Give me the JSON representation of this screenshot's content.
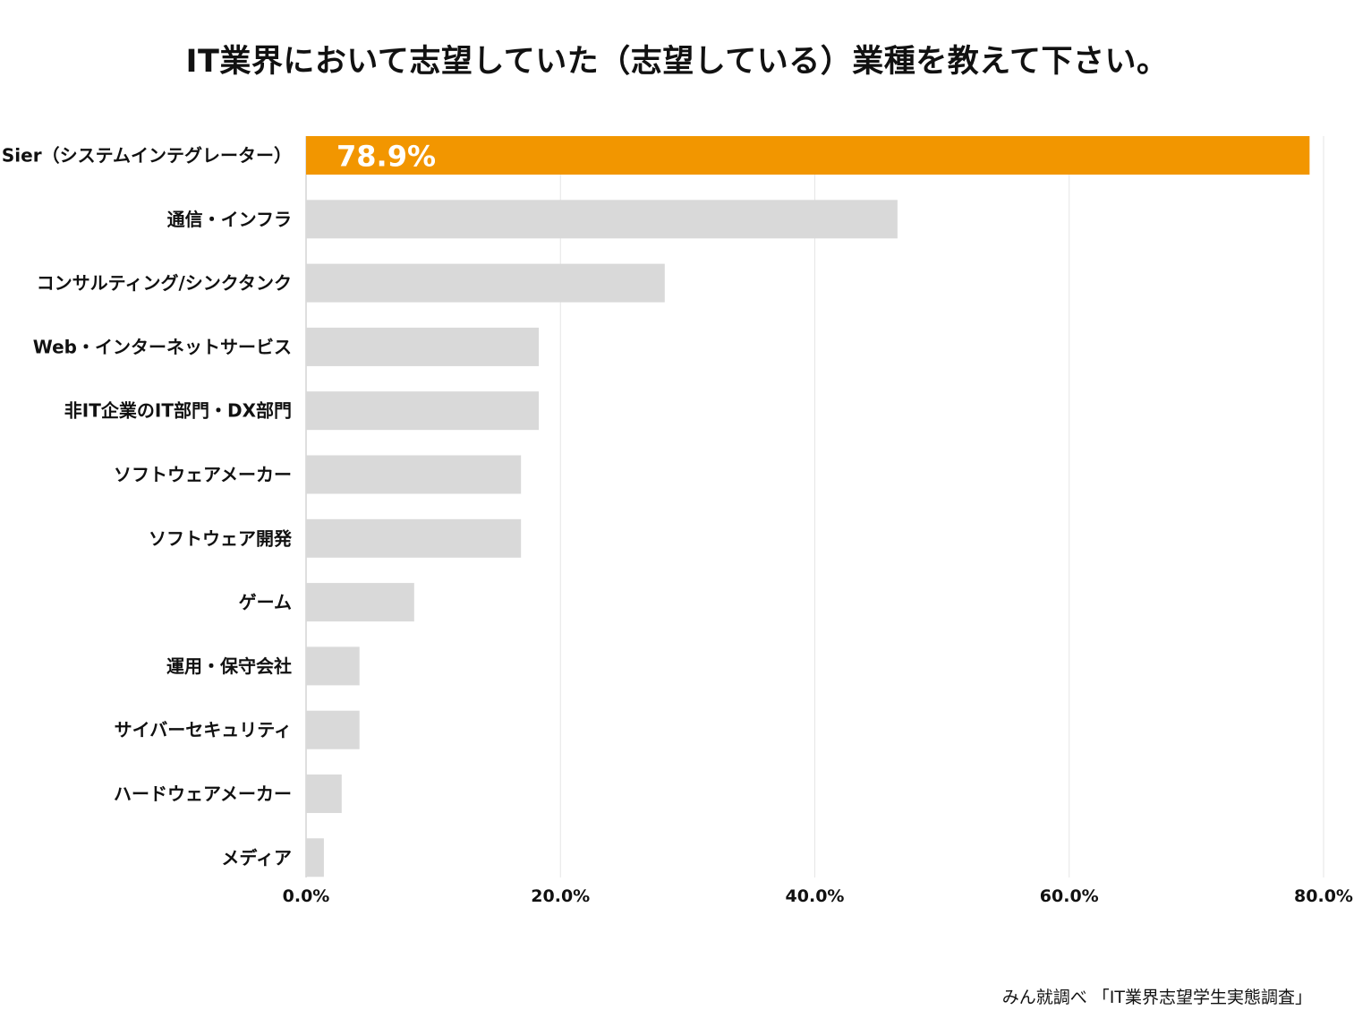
{
  "chart_data": {
    "type": "bar",
    "orientation": "horizontal",
    "title": "IT業界において志望していた（志望している）業種を教えて下さい。",
    "categories": [
      "Sier（システムインテグレーター）",
      "通信・インフラ",
      "コンサルティング/シンクタンク",
      "Web・インターネットサービス",
      "非IT企業のIT部門・DX部門",
      "ソフトウェアメーカー",
      "ソフトウェア開発",
      "ゲーム",
      "運用・保守会社",
      "サイバーセキュリティ",
      "ハードウェアメーカー",
      "メディア"
    ],
    "values": [
      78.9,
      46.5,
      28.2,
      18.3,
      18.3,
      16.9,
      16.9,
      8.5,
      4.2,
      4.2,
      2.8,
      1.4
    ],
    "data_labels": [
      "78.9%",
      "",
      "",
      "",
      "",
      "",
      "",
      "",
      "",
      "",
      "",
      ""
    ],
    "xlim": [
      0,
      80
    ],
    "xticks": [
      "0.0%",
      "20.0%",
      "40.0%",
      "60.0%",
      "80.0%"
    ],
    "xtick_values": [
      0,
      20,
      40,
      60,
      80
    ],
    "grid": true,
    "highlight_index": 0,
    "colors": {
      "highlight": "#F29600",
      "default": "#D9D9D9",
      "grid": "#E6E6E6",
      "axis": "#BFBFBF"
    },
    "xlabel": "",
    "ylabel": ""
  },
  "source": "みん就調べ 「IT業界志望学生実態調査」"
}
